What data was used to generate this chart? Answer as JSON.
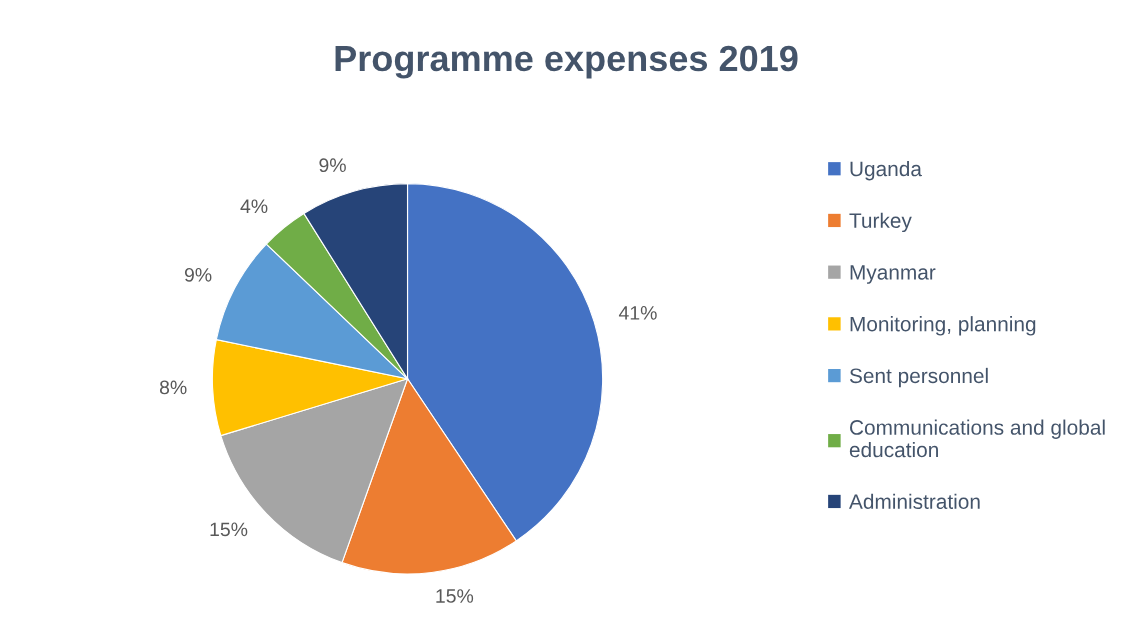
{
  "chart_data": {
    "type": "pie",
    "title": "Programme expenses 2019",
    "categories": [
      "Uganda",
      "Turkey",
      "Myanmar",
      "Monitoring, planning",
      "Sent personnel",
      "Communications and global\neducation",
      "Administration"
    ],
    "values": [
      41,
      15,
      15,
      8,
      9,
      4,
      9
    ],
    "colors": [
      "#4472c4",
      "#ed7d31",
      "#a5a5a5",
      "#ffc000",
      "#5b9bd5",
      "#70ad47",
      "#264478"
    ],
    "value_labels": [
      "41%",
      "15%",
      "15%",
      "8%",
      "9%",
      "4%",
      "9%"
    ],
    "legend": "right"
  }
}
